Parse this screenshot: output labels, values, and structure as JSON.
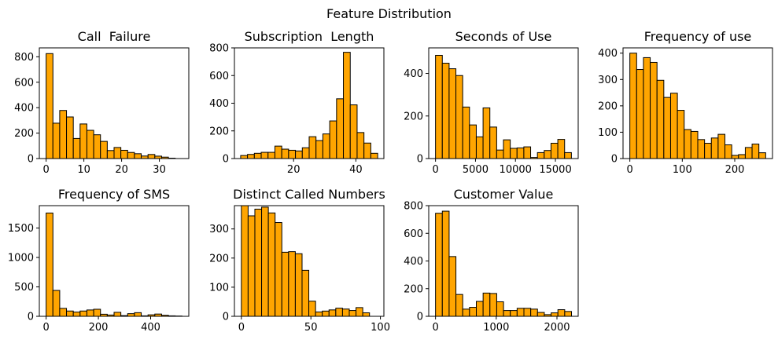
{
  "figure": {
    "title": "Feature Distribution"
  },
  "chart_data": [
    {
      "type": "bar",
      "title": "Call  Failure",
      "xlim": [
        -1.8,
        37.8
      ],
      "ylim": [
        0,
        870
      ],
      "xticks": [
        0,
        10,
        20,
        30
      ],
      "yticks": [
        0,
        200,
        400,
        600,
        800
      ],
      "bar_color": "#ffa500",
      "edge_color": "#000000",
      "bin_start": 0,
      "bin_width": 1.8,
      "values": [
        825,
        278,
        378,
        327,
        158,
        272,
        222,
        187,
        135,
        63,
        87,
        65,
        48,
        38,
        20,
        32,
        19,
        11,
        3,
        0
      ]
    },
    {
      "type": "bar",
      "title": "Subscription  Length",
      "xlim": [
        1,
        49
      ],
      "ylim": [
        0,
        800
      ],
      "xticks": [
        20,
        40
      ],
      "yticks": [
        0,
        200,
        400,
        600,
        800
      ],
      "bar_color": "#ffa500",
      "edge_color": "#000000",
      "bin_start": 3,
      "bin_width": 2.2,
      "values": [
        22,
        30,
        38,
        45,
        45,
        90,
        68,
        60,
        55,
        78,
        158,
        130,
        178,
        272,
        432,
        768,
        388,
        188,
        112,
        38
      ]
    },
    {
      "type": "bar",
      "title": "Seconds of Use",
      "xlim": [
        -850,
        17850
      ],
      "ylim": [
        0,
        520
      ],
      "xticks": [
        0,
        5000,
        10000,
        15000
      ],
      "yticks": [
        0,
        200,
        400
      ],
      "bar_color": "#ffa500",
      "edge_color": "#000000",
      "bin_start": 0,
      "bin_width": 850,
      "values": [
        485,
        448,
        422,
        390,
        242,
        158,
        102,
        238,
        148,
        40,
        88,
        48,
        50,
        55,
        5,
        28,
        38,
        72,
        90,
        28
      ]
    },
    {
      "type": "bar",
      "title": "Frequency of use",
      "xlim": [
        -13,
        272
      ],
      "ylim": [
        0,
        420
      ],
      "xticks": [
        0,
        100,
        200
      ],
      "yticks": [
        0,
        100,
        200,
        300,
        400
      ],
      "bar_color": "#ffa500",
      "edge_color": "#000000",
      "bin_start": 0,
      "bin_width": 12.95,
      "values": [
        400,
        338,
        383,
        365,
        297,
        232,
        248,
        183,
        110,
        103,
        72,
        58,
        78,
        92,
        52,
        12,
        15,
        42,
        55,
        22
      ]
    },
    {
      "type": "bar",
      "title": "Frequency of SMS",
      "xlim": [
        -26,
        546
      ],
      "ylim": [
        0,
        1880
      ],
      "xticks": [
        0,
        200,
        400
      ],
      "yticks": [
        0,
        500,
        1000,
        1500
      ],
      "bar_color": "#ffa500",
      "edge_color": "#000000",
      "bin_start": 0,
      "bin_width": 26,
      "values": [
        1755,
        440,
        135,
        90,
        72,
        90,
        108,
        120,
        35,
        22,
        68,
        12,
        45,
        62,
        8,
        25,
        38,
        18,
        8,
        5
      ]
    },
    {
      "type": "bar",
      "title": "Distinct Called Numbers",
      "xlim": [
        -5,
        102.5
      ],
      "ylim": [
        0,
        380
      ],
      "xticks": [
        0,
        50,
        100
      ],
      "yticks": [
        0,
        100,
        200,
        300
      ],
      "bar_color": "#ffa500",
      "edge_color": "#000000",
      "bin_start": 0,
      "bin_width": 4.85,
      "values": [
        380,
        345,
        368,
        375,
        355,
        322,
        220,
        222,
        215,
        158,
        52,
        15,
        18,
        22,
        28,
        25,
        20,
        30,
        12,
        0
      ]
    },
    {
      "type": "bar",
      "title": "Customer Value",
      "xlim": [
        -112,
        2350
      ],
      "ylim": [
        0,
        800
      ],
      "xticks": [
        0,
        1000,
        2000
      ],
      "yticks": [
        0,
        200,
        400,
        600,
        800
      ],
      "bar_color": "#ffa500",
      "edge_color": "#000000",
      "bin_start": 0,
      "bin_width": 112,
      "values": [
        745,
        760,
        432,
        158,
        52,
        65,
        108,
        168,
        165,
        105,
        42,
        42,
        58,
        58,
        52,
        28,
        12,
        25,
        48,
        35
      ]
    }
  ]
}
